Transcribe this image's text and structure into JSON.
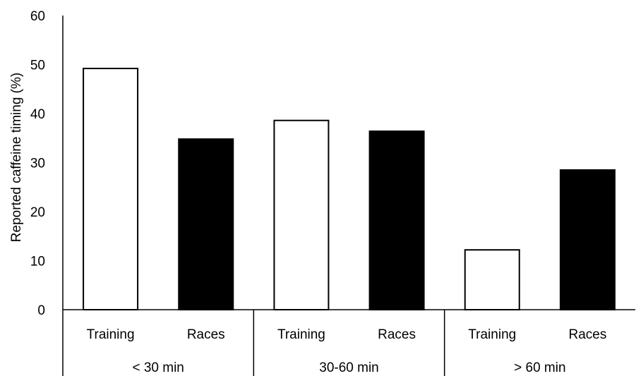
{
  "chart_data": {
    "type": "bar",
    "title": "",
    "xlabel": "",
    "ylabel": "Reported caffeine timing  (%)",
    "ylim": [
      0,
      60
    ],
    "yticks": [
      0,
      10,
      20,
      30,
      40,
      50,
      60
    ],
    "grid": false,
    "groups": [
      {
        "label": "< 30 min",
        "bars": [
          {
            "label": "Training",
            "value": 49.2,
            "fill": "white"
          },
          {
            "label": "Races",
            "value": 34.8,
            "fill": "black"
          }
        ]
      },
      {
        "label": "30-60 min",
        "bars": [
          {
            "label": "Training",
            "value": 38.6,
            "fill": "white"
          },
          {
            "label": "Races",
            "value": 36.4,
            "fill": "black"
          }
        ]
      },
      {
        "label": "> 60 min",
        "bars": [
          {
            "label": "Training",
            "value": 12.2,
            "fill": "white"
          },
          {
            "label": "Races",
            "value": 28.5,
            "fill": "black"
          }
        ]
      }
    ],
    "colors": {
      "white": "#ffffff",
      "black": "#000000",
      "outline": "#000000"
    }
  }
}
